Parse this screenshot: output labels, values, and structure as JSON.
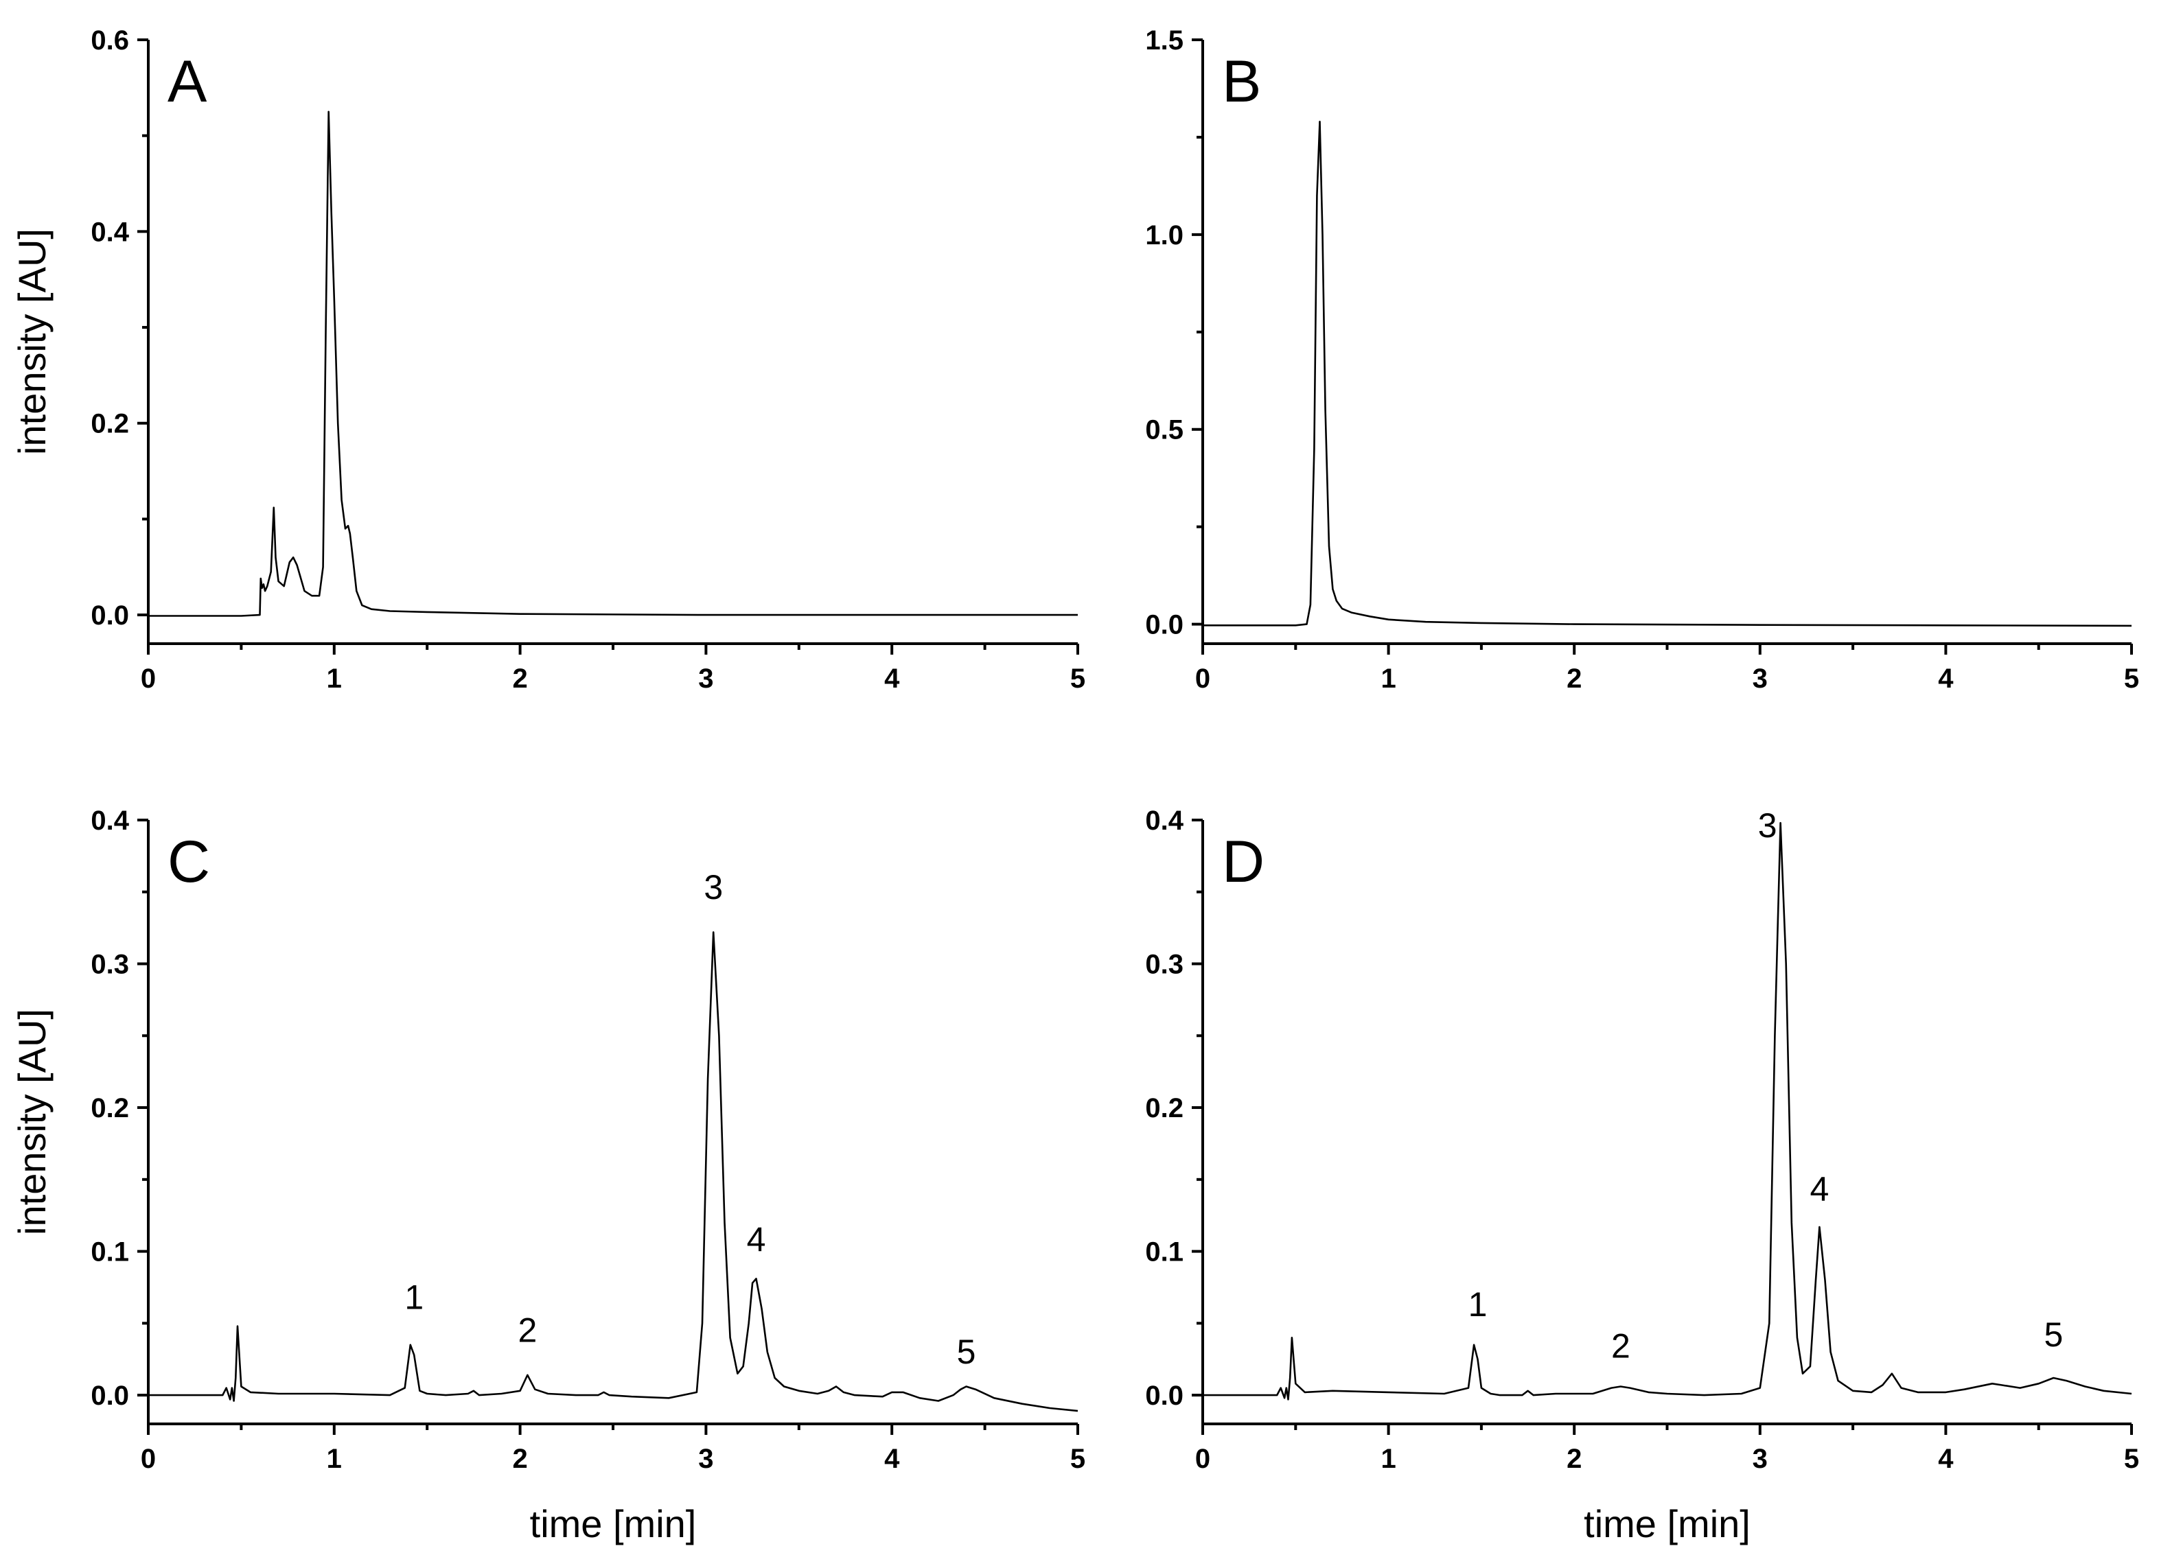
{
  "chart_data": [
    {
      "type": "line",
      "panel_label": "A",
      "xlabel": "",
      "ylabel": "intensity [AU]",
      "xlim": [
        0,
        5
      ],
      "ylim": [
        -0.03,
        0.6
      ],
      "x_ticks": [
        0,
        1,
        2,
        3,
        4,
        5
      ],
      "y_ticks": [
        0.0,
        0.2,
        0.4,
        0.6
      ],
      "y_tick_labels": [
        "0.0",
        "0.2",
        "0.4",
        "0.6"
      ],
      "x_tick_labels": [
        "0",
        "1",
        "2",
        "3",
        "4",
        "5"
      ],
      "grid": false,
      "series": [
        {
          "x": [
            0,
            0.5,
            0.6,
            0.605,
            0.612,
            0.62,
            0.628,
            0.64,
            0.66,
            0.675,
            0.685,
            0.7,
            0.73,
            0.76,
            0.78,
            0.8,
            0.84,
            0.88,
            0.92,
            0.94,
            0.955,
            0.97,
            0.985,
            1.0,
            1.02,
            1.04,
            1.06,
            1.075,
            1.085,
            1.1,
            1.12,
            1.15,
            1.2,
            1.3,
            1.5,
            2,
            3,
            4,
            5
          ],
          "y": [
            -0.001,
            -0.001,
            0.0,
            0.038,
            0.028,
            0.032,
            0.025,
            0.03,
            0.045,
            0.112,
            0.06,
            0.035,
            0.03,
            0.055,
            0.06,
            0.052,
            0.025,
            0.02,
            0.02,
            0.05,
            0.3,
            0.525,
            0.42,
            0.33,
            0.2,
            0.12,
            0.09,
            0.093,
            0.085,
            0.06,
            0.025,
            0.01,
            0.006,
            0.004,
            0.003,
            0.001,
            0.0,
            0.0,
            0.0
          ]
        }
      ],
      "annotations": []
    },
    {
      "type": "line",
      "panel_label": "B",
      "xlabel": "",
      "ylabel": "",
      "xlim": [
        0,
        5
      ],
      "ylim": [
        -0.05,
        1.5
      ],
      "x_ticks": [
        0,
        1,
        2,
        3,
        4,
        5
      ],
      "y_ticks": [
        0.0,
        0.5,
        1.0,
        1.5
      ],
      "y_tick_labels": [
        "0.0",
        "0.5",
        "1.0",
        "1.5"
      ],
      "x_tick_labels": [
        "0",
        "1",
        "2",
        "3",
        "4",
        "5"
      ],
      "grid": false,
      "series": [
        {
          "x": [
            0,
            0.5,
            0.56,
            0.58,
            0.6,
            0.615,
            0.63,
            0.645,
            0.66,
            0.68,
            0.7,
            0.72,
            0.75,
            0.8,
            0.9,
            1.0,
            1.2,
            1.5,
            2,
            3,
            4,
            5
          ],
          "y": [
            -0.003,
            -0.003,
            0.0,
            0.05,
            0.45,
            1.1,
            1.29,
            1.0,
            0.55,
            0.2,
            0.09,
            0.06,
            0.04,
            0.03,
            0.02,
            0.012,
            0.006,
            0.003,
            0.0,
            -0.002,
            -0.003,
            -0.004
          ]
        }
      ],
      "annotations": []
    },
    {
      "type": "line",
      "panel_label": "C",
      "xlabel": "time [min]",
      "ylabel": "intensity [AU]",
      "xlim": [
        0,
        5
      ],
      "ylim": [
        -0.02,
        0.4
      ],
      "x_ticks": [
        0,
        1,
        2,
        3,
        4,
        5
      ],
      "y_ticks": [
        0.0,
        0.1,
        0.2,
        0.3,
        0.4
      ],
      "y_tick_labels": [
        "0.0",
        "0.1",
        "0.2",
        "0.3",
        "0.4"
      ],
      "x_tick_labels": [
        "0",
        "1",
        "2",
        "3",
        "4",
        "5"
      ],
      "grid": false,
      "series": [
        {
          "x": [
            0,
            0.4,
            0.42,
            0.44,
            0.45,
            0.46,
            0.47,
            0.48,
            0.5,
            0.55,
            0.7,
            1.0,
            1.3,
            1.38,
            1.41,
            1.43,
            1.46,
            1.5,
            1.6,
            1.72,
            1.75,
            1.78,
            1.9,
            2.0,
            2.04,
            2.08,
            2.15,
            2.3,
            2.42,
            2.45,
            2.48,
            2.6,
            2.8,
            2.95,
            2.98,
            3.01,
            3.04,
            3.07,
            3.1,
            3.13,
            3.17,
            3.2,
            3.23,
            3.25,
            3.27,
            3.3,
            3.33,
            3.37,
            3.42,
            3.5,
            3.6,
            3.66,
            3.7,
            3.74,
            3.8,
            3.95,
            4.0,
            4.06,
            4.15,
            4.25,
            4.33,
            4.37,
            4.4,
            4.45,
            4.55,
            4.7,
            4.85,
            5.0
          ],
          "y": [
            0.0,
            0.0,
            0.005,
            -0.003,
            0.005,
            -0.004,
            0.012,
            0.048,
            0.006,
            0.002,
            0.001,
            0.001,
            0.0,
            0.005,
            0.035,
            0.028,
            0.003,
            0.001,
            0.0,
            0.001,
            0.003,
            0.0,
            0.001,
            0.003,
            0.014,
            0.004,
            0.001,
            0.0,
            0.0,
            0.002,
            0.0,
            -0.001,
            -0.002,
            0.002,
            0.05,
            0.22,
            0.322,
            0.25,
            0.12,
            0.04,
            0.015,
            0.02,
            0.05,
            0.078,
            0.081,
            0.06,
            0.03,
            0.012,
            0.006,
            0.003,
            0.001,
            0.003,
            0.006,
            0.002,
            0.0,
            -0.001,
            0.002,
            0.002,
            -0.002,
            -0.004,
            0.0,
            0.004,
            0.006,
            0.004,
            -0.002,
            -0.006,
            -0.009,
            -0.011
          ]
        }
      ],
      "annotations": [
        {
          "text": "1",
          "x": 1.43,
          "y": 0.06
        },
        {
          "text": "2",
          "x": 2.04,
          "y": 0.037
        },
        {
          "text": "3",
          "x": 3.04,
          "y": 0.345
        },
        {
          "text": "4",
          "x": 3.27,
          "y": 0.1
        },
        {
          "text": "5",
          "x": 4.4,
          "y": 0.022
        }
      ]
    },
    {
      "type": "line",
      "panel_label": "D",
      "xlabel": "time [min]",
      "ylabel": "",
      "xlim": [
        0,
        5
      ],
      "ylim": [
        -0.02,
        0.4
      ],
      "x_ticks": [
        0,
        1,
        2,
        3,
        4,
        5
      ],
      "y_ticks": [
        0.0,
        0.1,
        0.2,
        0.3,
        0.4
      ],
      "y_tick_labels": [
        "0.0",
        "0.1",
        "0.2",
        "0.3",
        "0.4"
      ],
      "x_tick_labels": [
        "0",
        "1",
        "2",
        "3",
        "4",
        "5"
      ],
      "grid": false,
      "series": [
        {
          "x": [
            0,
            0.4,
            0.42,
            0.44,
            0.45,
            0.46,
            0.47,
            0.48,
            0.5,
            0.55,
            0.7,
            1.0,
            1.3,
            1.43,
            1.46,
            1.48,
            1.5,
            1.55,
            1.6,
            1.72,
            1.75,
            1.78,
            1.9,
            2.1,
            2.2,
            2.25,
            2.3,
            2.4,
            2.5,
            2.7,
            2.9,
            3.0,
            3.05,
            3.08,
            3.11,
            3.14,
            3.17,
            3.2,
            3.23,
            3.27,
            3.3,
            3.32,
            3.35,
            3.38,
            3.42,
            3.5,
            3.6,
            3.66,
            3.71,
            3.76,
            3.85,
            4.0,
            4.1,
            4.25,
            4.3,
            4.4,
            4.5,
            4.58,
            4.65,
            4.75,
            4.85,
            5.0
          ],
          "y": [
            0.0,
            0.0,
            0.005,
            -0.002,
            0.005,
            -0.003,
            0.012,
            0.04,
            0.008,
            0.002,
            0.003,
            0.002,
            0.001,
            0.005,
            0.035,
            0.025,
            0.005,
            0.001,
            0.0,
            0.0,
            0.003,
            0.0,
            0.001,
            0.001,
            0.005,
            0.006,
            0.005,
            0.002,
            0.001,
            0.0,
            0.001,
            0.005,
            0.05,
            0.25,
            0.398,
            0.3,
            0.12,
            0.04,
            0.015,
            0.02,
            0.08,
            0.117,
            0.08,
            0.03,
            0.01,
            0.003,
            0.002,
            0.007,
            0.015,
            0.005,
            0.002,
            0.002,
            0.004,
            0.008,
            0.007,
            0.005,
            0.008,
            0.012,
            0.01,
            0.006,
            0.003,
            0.001
          ]
        }
      ],
      "annotations": [
        {
          "text": "1",
          "x": 1.48,
          "y": 0.055
        },
        {
          "text": "2",
          "x": 2.25,
          "y": 0.026
        },
        {
          "text": "3",
          "x": 3.04,
          "y": 0.388
        },
        {
          "text": "4",
          "x": 3.32,
          "y": 0.135
        },
        {
          "text": "5",
          "x": 4.58,
          "y": 0.034
        }
      ]
    }
  ]
}
